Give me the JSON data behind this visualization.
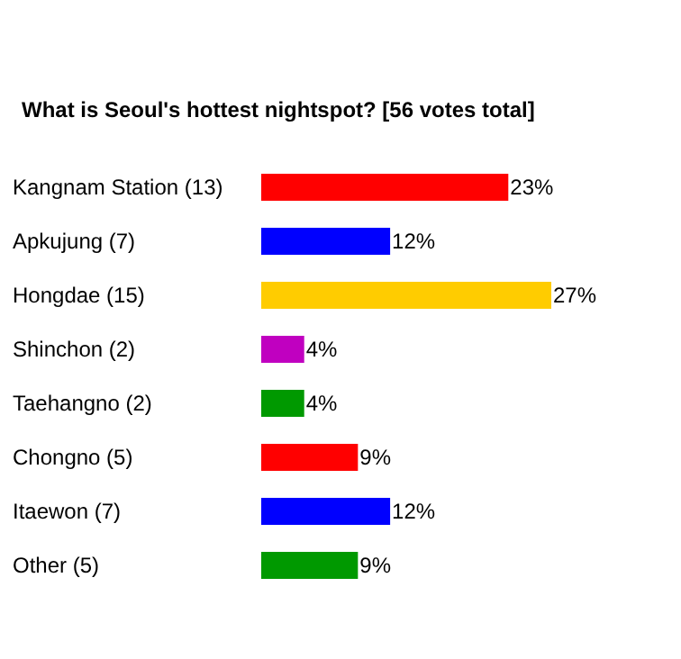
{
  "chart_data": {
    "type": "bar",
    "orientation": "horizontal",
    "title": "What is Seoul's hottest nightspot? [56 votes total]",
    "categories": [
      "Kangnam Station (13)",
      "Apkujung (7)",
      "Hongdae (15)",
      "Shinchon (2)",
      "Taehangno (2)",
      "Chongno (5)",
      "Itaewon (7)",
      "Other (5)"
    ],
    "values": [
      23,
      12,
      27,
      4,
      4,
      9,
      12,
      9
    ],
    "colors": [
      "#ff0000",
      "#0000ff",
      "#ffcc00",
      "#c000c0",
      "#009900",
      "#ff0000",
      "#0000ff",
      "#009900"
    ],
    "value_labels": [
      "23%",
      "12%",
      "27%",
      "4%",
      "4%",
      "9%",
      "12%",
      "9%"
    ]
  }
}
